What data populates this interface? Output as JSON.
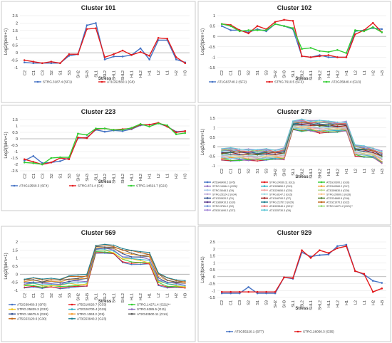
{
  "chart_data": [
    {
      "type": "line",
      "title": "Cluster 101",
      "xlabel": "Stress",
      "ylabel": "Log2(fpkm+1)",
      "categories": [
        "C2",
        "C1",
        "C3",
        "S2",
        "S1",
        "S3",
        "SH2",
        "SH3",
        "SL1",
        "SL2",
        "SHL1",
        "SHL2",
        "HL1",
        "HL2",
        "H1",
        "L2",
        "L1",
        "H2",
        "H3"
      ],
      "ylim": [
        -1,
        2.5
      ],
      "yticks": [
        -1,
        -0.5,
        0,
        0.5,
        1,
        1.5,
        2,
        2.5
      ],
      "series": [
        {
          "name": "STRG.3187.4 (SF1)",
          "color": "#4472C4",
          "values": [
            -0.65,
            -0.7,
            -0.7,
            -0.7,
            -0.7,
            -0.2,
            -0.1,
            1.85,
            2.0,
            -0.45,
            -0.25,
            -0.25,
            -0.15,
            0.3,
            -0.45,
            0.85,
            0.85,
            -0.45,
            -0.65
          ]
        },
        {
          "name": "AT1G52560.1 (G8)",
          "color": "#E31A1C",
          "values": [
            -0.5,
            -0.6,
            -0.7,
            -0.6,
            -0.7,
            -0.1,
            -0.1,
            1.6,
            1.65,
            -0.3,
            -0.1,
            0.15,
            -0.15,
            0.05,
            -0.2,
            1.0,
            0.95,
            -0.3,
            -0.7
          ]
        }
      ]
    },
    {
      "type": "line",
      "title": "Cluster 102",
      "xlabel": "Stress",
      "ylabel": "Log2(fpkm+1)",
      "categories": [
        "C2",
        "C1",
        "C3",
        "S2",
        "S1",
        "S3",
        "SH2",
        "SH3",
        "SL1",
        "SL2",
        "SHL1",
        "SHL2",
        "HL1",
        "HL2",
        "H1",
        "L2",
        "L1",
        "H2",
        "H3"
      ],
      "ylim": [
        -1.5,
        1
      ],
      "yticks": [
        -1.5,
        -1,
        -0.5,
        0,
        0.5,
        1
      ],
      "series": [
        {
          "name": "AT1G63740.2 (SF2)",
          "color": "#4472C4",
          "values": [
            0.5,
            0.3,
            0.3,
            0.2,
            0.35,
            0.25,
            0.6,
            0.5,
            0.35,
            -0.95,
            -1.0,
            -0.9,
            -1.0,
            -1.0,
            -1.0,
            0.25,
            0.3,
            0.4,
            0.35
          ]
        },
        {
          "name": "STRG.7610.5 (SF3)",
          "color": "#E31A1C",
          "values": [
            0.6,
            0.55,
            0.3,
            0.15,
            0.5,
            0.35,
            0.7,
            0.8,
            0.75,
            -0.95,
            -1.0,
            -0.95,
            -0.9,
            -1.0,
            -1.0,
            0.1,
            0.3,
            0.65,
            0.2
          ]
        },
        {
          "name": "AT2G35840.4 (G13)",
          "color": "#33CC33",
          "values": [
            0.6,
            0.5,
            0.25,
            0.3,
            0.3,
            0.3,
            0.6,
            0.5,
            0.4,
            -0.6,
            -0.55,
            -0.7,
            -0.75,
            -0.65,
            -0.8,
            0.3,
            0.25,
            0.45,
            0.2
          ]
        }
      ]
    },
    {
      "type": "line",
      "title": "Cluster 223",
      "xlabel": "Stress",
      "ylabel": "Log2(fpkm+1)",
      "categories": [
        "C2",
        "C1",
        "C3",
        "S2",
        "S1",
        "S3",
        "SH2",
        "SH3",
        "SL1",
        "SL2",
        "SHL1",
        "SHL2",
        "HL1",
        "HL2",
        "H1",
        "L2",
        "L1",
        "H2",
        "H3"
      ],
      "ylim": [
        -2.5,
        1.5
      ],
      "yticks": [
        -2.5,
        -2,
        -1.5,
        -1,
        -0.5,
        0,
        0.5,
        1,
        1.5
      ],
      "series": [
        {
          "name": "AT4G12560.3 (SF4)",
          "color": "#4472C4",
          "values": [
            -1.7,
            -1.35,
            -1.9,
            -1.85,
            -1.75,
            -1.5,
            0.05,
            0.1,
            0.7,
            0.55,
            0.65,
            0.6,
            0.75,
            1.05,
            1.1,
            1.2,
            0.95,
            0.55,
            0.6
          ]
        },
        {
          "name": "STRG.871.4 (G4)",
          "color": "#E31A1C",
          "values": [
            -1.6,
            -1.8,
            -2.0,
            -1.85,
            -1.5,
            -1.6,
            0.1,
            0.05,
            0.75,
            0.8,
            0.7,
            0.75,
            0.8,
            1.1,
            1.1,
            1.25,
            0.95,
            0.5,
            0.6
          ]
        },
        {
          "name": "STRG.14621.7 (G22)",
          "color": "#33CC33",
          "values": [
            -1.85,
            -1.9,
            -2.0,
            -1.5,
            -1.45,
            -1.45,
            0.4,
            0.3,
            0.8,
            0.8,
            0.7,
            0.7,
            0.85,
            1.15,
            0.95,
            1.2,
            1.05,
            0.35,
            0.45
          ]
        }
      ]
    },
    {
      "type": "line",
      "title": "Cluster 279",
      "xlabel": "Stress",
      "ylabel": "Log2(fpkm+1)",
      "categories": [
        "C2",
        "C1",
        "C3",
        "S2",
        "S1",
        "S3",
        "SH2",
        "SH3",
        "SL1",
        "SL2",
        "SHL1",
        "SHL2",
        "HL1",
        "HL2",
        "H1",
        "L2",
        "L1",
        "H2",
        "H3"
      ],
      "ylim": [
        -1,
        1.5
      ],
      "yticks": [
        -1,
        -0.5,
        0,
        0.5,
        1,
        1.5
      ],
      "series": [
        {
          "name": "AT5G46490.2 (SF5)",
          "color": "#4472C4"
        },
        {
          "name": "STRG.24939.11 (G11)",
          "color": "#E31A1C"
        },
        {
          "name": "AT5G10300.1 (G16)",
          "color": "#33CC33"
        },
        {
          "name": "STRG.19084.1 (G25)*",
          "color": "#8E6BBF"
        },
        {
          "name": "AT1G05850.2 (G13)",
          "color": "#2BB0C4"
        },
        {
          "name": "AT2G40360.2 (G17)",
          "color": "#F39C32"
        },
        {
          "name": "STRG.5048.3 (G9)",
          "color": "#A9C8EA"
        },
        {
          "name": "AT3G29650.0 (G20)",
          "color": "#F2A7A7"
        },
        {
          "name": "AT3G59830.4 (G26)",
          "color": "#B8D98D"
        },
        {
          "name": "STRG.25124.2 (G34)",
          "color": "#B7A4D6"
        },
        {
          "name": "STRG.8147.2 (G15)",
          "color": "#9AD9E0"
        },
        {
          "name": "STRG.20609.1 (G28)",
          "color": "#F8C28A"
        },
        {
          "name": "AT1G20920.2 (G1)",
          "color": "#2F4F8F"
        },
        {
          "name": "AT1G46700.2 (G7)",
          "color": "#9E1B1B"
        },
        {
          "name": "AT2G24680.5 (G16)",
          "color": "#4E7F2A"
        },
        {
          "name": "AT1G66410.3 (G10)",
          "color": "#5B3A8C"
        },
        {
          "name": "STRG.21767.3 (G29)",
          "color": "#1D7F8F"
        },
        {
          "name": "AT2G21070.3 (G12)",
          "color": "#C0661A"
        },
        {
          "name": "STRG.3781.2 (G2)",
          "color": "#6B8FD6"
        },
        {
          "name": "AT4G29340.1 (G21)*",
          "color": "#E26D6D"
        },
        {
          "name": "STRG.14271.2 (G21)**",
          "color": "#8FD66B"
        },
        {
          "name": "AT5G01490.2 (G27)",
          "color": "#A68BD9"
        },
        {
          "name": "AT1G35730.3 (G6)",
          "color": "#60C7D6"
        }
      ],
      "band": {
        "low": [
          -0.7,
          -0.75,
          -0.75,
          -0.75,
          -0.75,
          -0.7,
          -0.7,
          -0.7,
          0.9,
          0.8,
          0.8,
          0.7,
          0.75,
          0.75,
          0.8,
          -0.5,
          -0.55,
          -0.6,
          -0.9
        ],
        "high": [
          -0.1,
          -0.05,
          -0.1,
          -0.1,
          -0.15,
          -0.1,
          -0.15,
          -0.05,
          1.35,
          1.45,
          1.4,
          1.4,
          1.35,
          1.3,
          1.35,
          0.1,
          0.05,
          -0.05,
          -0.2
        ]
      }
    },
    {
      "type": "line",
      "title": "Cluster 569",
      "xlabel": "Stress",
      "ylabel": "Log2(fpkm+1)",
      "categories": [
        "C2",
        "C1",
        "C3",
        "S2",
        "S1",
        "S3",
        "SH2",
        "SH3",
        "SL1",
        "SL2",
        "SHL1",
        "SHL2",
        "HL1",
        "HL2",
        "H1",
        "L2",
        "L1",
        "H2",
        "H3"
      ],
      "ylim": [
        -1,
        2
      ],
      "yticks": [
        -1,
        -0.5,
        0,
        0.5,
        1,
        1.5,
        2
      ],
      "series": [
        {
          "name": "AT2G38460.3 (SF6)",
          "color": "#4472C4"
        },
        {
          "name": "AT5G10020.7 (G33)",
          "color": "#E31A1C"
        },
        {
          "name": "STRG.14271.4 (G21)**",
          "color": "#33CC33"
        },
        {
          "name": "STRG.25829.3 (G32)",
          "color": "#F0C419"
        },
        {
          "name": "AT2G26700.4 (G19)",
          "color": "#2BB0C4"
        },
        {
          "name": "STRG.6385.5 (G11)",
          "color": "#8E6BBF"
        },
        {
          "name": "STRG.16675.5 (G26)",
          "color": "#2F4F8F"
        },
        {
          "name": "STRG.1063.2 (G5)",
          "color": "#F39C32"
        },
        {
          "name": "AT2G43500.11 (G14)",
          "color": "#555555"
        },
        {
          "name": "AT5G53120.6 (G30)",
          "color": "#C0661A"
        },
        {
          "name": "AT3G53940.2 (G23)",
          "color": "#1D7F8F"
        }
      ],
      "band": {
        "low": [
          -0.85,
          -0.8,
          -0.9,
          -0.85,
          -0.9,
          -0.85,
          -0.85,
          -0.8,
          1.3,
          1.3,
          1.2,
          0.7,
          0.6,
          0.6,
          0.55,
          -0.7,
          -0.85,
          -0.85,
          -0.9
        ],
        "high": [
          -0.3,
          -0.2,
          -0.3,
          -0.25,
          -0.3,
          -0.1,
          -0.05,
          0.0,
          1.8,
          1.85,
          1.8,
          1.6,
          1.5,
          1.4,
          1.35,
          0.1,
          -0.2,
          -0.35,
          -0.4
        ]
      }
    },
    {
      "type": "line",
      "title": "Cluster 929",
      "xlabel": "Stress",
      "ylabel": "Log2(fpkm+1)",
      "categories": [
        "C2",
        "C1",
        "C3",
        "S2",
        "S1",
        "S3",
        "SH2",
        "SH3",
        "SL1",
        "SL2",
        "SHL1",
        "SHL2",
        "HL1",
        "HL2",
        "H1",
        "L2",
        "L1",
        "H2",
        "H3"
      ],
      "ylim": [
        -1.5,
        2.5
      ],
      "yticks": [
        -1.5,
        -1,
        -0.5,
        0,
        0.5,
        1,
        1.5,
        2,
        2.5
      ],
      "series": [
        {
          "name": "AT3G55220.1 (SF7)",
          "color": "#4472C4",
          "values": [
            -1.2,
            -1.2,
            -1.2,
            -0.75,
            -1.2,
            -1.2,
            -1.2,
            -0.05,
            -0.15,
            1.75,
            1.45,
            1.55,
            1.6,
            2.2,
            2.3,
            0.4,
            0.15,
            -0.3,
            -0.45
          ]
        },
        {
          "name": "STRG.26050.3 (G35)",
          "color": "#E31A1C",
          "values": [
            -1.1,
            -1.1,
            -1.1,
            -1.1,
            -1.1,
            -1.1,
            -1.1,
            -0.05,
            -0.1,
            1.9,
            1.35,
            1.9,
            1.7,
            2.05,
            2.2,
            0.4,
            0.2,
            -1.1,
            -0.85
          ]
        }
      ]
    }
  ]
}
